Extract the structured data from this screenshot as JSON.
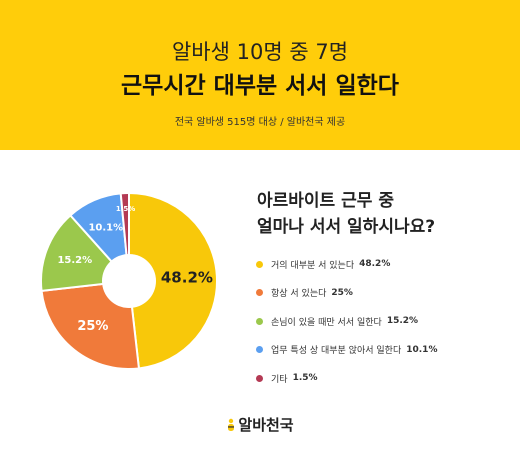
{
  "header": {
    "line1": "알바생 10명 중 7명",
    "line2": "근무시간 대부분 서서 일한다",
    "source": "전국 알바생 515명 대상 / 알바천국 제공"
  },
  "question": {
    "line1": "아르바이트 근무 중",
    "line2": "얼마나 서서 일하시나요?"
  },
  "chart_data": {
    "type": "pie",
    "title": "",
    "categories": [
      "거의 대부분 서 있는다",
      "항상 서 있는다",
      "손님이 있을 때만 서서 일한다",
      "업무 특성 상 대부분 앉아서 일한다",
      "기타"
    ],
    "values": [
      48.2,
      25,
      15.2,
      10.1,
      1.5
    ],
    "value_labels": [
      "48.2%",
      "25%",
      "15.2%",
      "10.1%",
      "1.5%"
    ],
    "colors": [
      "#f8c80a",
      "#f07a3a",
      "#9bc84c",
      "#5b9ff0",
      "#b43a54"
    ],
    "legend_placement": "right"
  },
  "logo": {
    "text": "알바천국"
  }
}
